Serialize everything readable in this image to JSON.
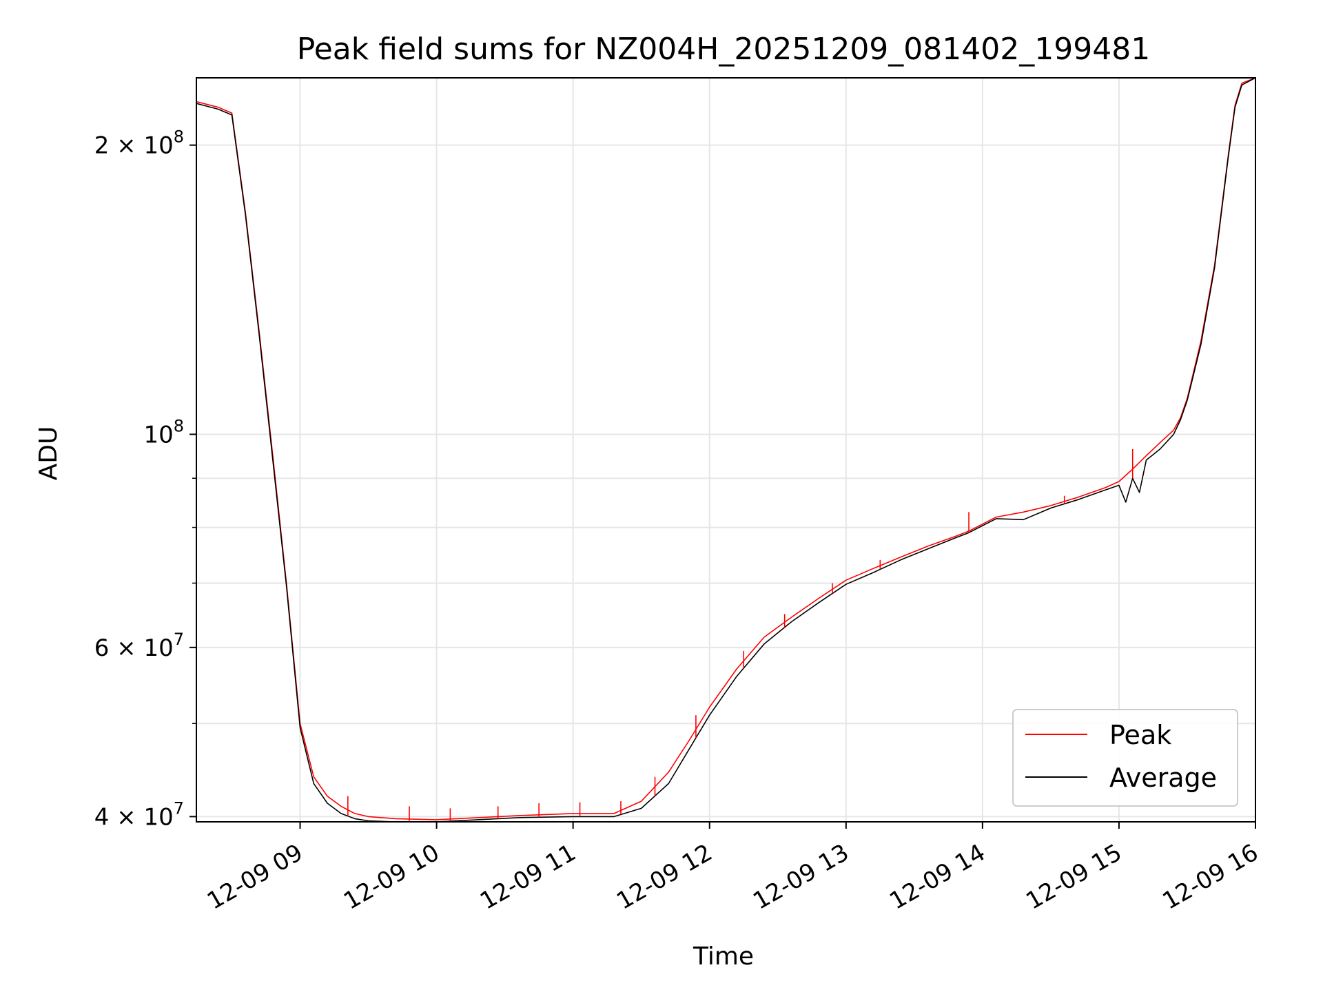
{
  "chart_data": {
    "type": "line",
    "title": "Peak field sums for NZ004H_20251209_081402_199481",
    "xlabel": "Time",
    "ylabel": "ADU",
    "yscale": "log",
    "ylim": [
      39500000,
      235000000
    ],
    "xlim": [
      8.24,
      16.0
    ],
    "grid": true,
    "legend_position": "lower-right",
    "x_ticks": [
      {
        "value": 9,
        "label": "12-09 09"
      },
      {
        "value": 10,
        "label": "12-09 10"
      },
      {
        "value": 11,
        "label": "12-09 11"
      },
      {
        "value": 12,
        "label": "12-09 12"
      },
      {
        "value": 13,
        "label": "12-09 13"
      },
      {
        "value": 14,
        "label": "12-09 14"
      },
      {
        "value": 15,
        "label": "12-09 15"
      },
      {
        "value": 16,
        "label": "12-09 16"
      }
    ],
    "y_ticks_major": [
      {
        "value": 40000000,
        "mantissa": "4",
        "exponent": "7"
      },
      {
        "value": 60000000,
        "mantissa": "6",
        "exponent": "7"
      },
      {
        "value": 100000000,
        "mantissa": "",
        "exponent": "8"
      },
      {
        "value": 200000000,
        "mantissa": "2",
        "exponent": "8"
      }
    ],
    "y_ticks_minor": [
      50000000,
      70000000,
      80000000,
      90000000
    ],
    "series": [
      {
        "name": "Peak",
        "color": "#ff0000",
        "x": [
          8.24,
          8.4,
          8.5,
          8.6,
          8.7,
          8.8,
          8.9,
          9.0,
          9.1,
          9.2,
          9.3,
          9.4,
          9.5,
          9.7,
          10.0,
          10.3,
          10.6,
          11.0,
          11.3,
          11.5,
          11.7,
          11.85,
          12.0,
          12.2,
          12.4,
          12.6,
          12.8,
          13.0,
          13.2,
          13.4,
          13.6,
          13.8,
          13.9,
          14.1,
          14.3,
          14.5,
          14.7,
          14.9,
          15.0,
          15.1,
          15.2,
          15.3,
          15.4,
          15.45,
          15.5,
          15.6,
          15.7,
          15.8,
          15.85,
          15.9,
          16.0
        ],
        "values": [
          222000000,
          219000000,
          216000000,
          170000000,
          128000000,
          95000000,
          70000000,
          50000000,
          44000000,
          42000000,
          41000000,
          40300000,
          40000000,
          39800000,
          39700000,
          39900000,
          40100000,
          40300000,
          40300000,
          41500000,
          44500000,
          48000000,
          52000000,
          57000000,
          61500000,
          64500000,
          67500000,
          70500000,
          72500000,
          74500000,
          76500000,
          78300000,
          79300000,
          82000000,
          83000000,
          84300000,
          86000000,
          88000000,
          89300000,
          92000000,
          95000000,
          98000000,
          101000000,
          104000000,
          109000000,
          125000000,
          150000000,
          195000000,
          220000000,
          232000000,
          235000000
        ],
        "spikes": [
          {
            "x": 9.35,
            "value": 42000000
          },
          {
            "x": 9.8,
            "value": 41000000
          },
          {
            "x": 10.1,
            "value": 40800000
          },
          {
            "x": 10.45,
            "value": 41000000
          },
          {
            "x": 10.75,
            "value": 41300000
          },
          {
            "x": 11.05,
            "value": 41400000
          },
          {
            "x": 11.35,
            "value": 41500000
          },
          {
            "x": 11.6,
            "value": 44000000
          },
          {
            "x": 11.9,
            "value": 51000000
          },
          {
            "x": 12.25,
            "value": 59500000
          },
          {
            "x": 12.55,
            "value": 65000000
          },
          {
            "x": 12.9,
            "value": 70000000
          },
          {
            "x": 13.25,
            "value": 74000000
          },
          {
            "x": 13.9,
            "value": 83000000
          },
          {
            "x": 14.6,
            "value": 86300000
          },
          {
            "x": 15.1,
            "value": 96500000
          }
        ]
      },
      {
        "name": "Average",
        "color": "#000000",
        "x": [
          8.24,
          8.4,
          8.5,
          8.6,
          8.7,
          8.8,
          8.9,
          9.0,
          9.1,
          9.2,
          9.3,
          9.4,
          9.5,
          9.7,
          10.0,
          10.3,
          10.6,
          11.0,
          11.3,
          11.5,
          11.7,
          11.85,
          12.0,
          12.2,
          12.4,
          12.6,
          12.8,
          13.0,
          13.2,
          13.4,
          13.6,
          13.8,
          13.9,
          14.1,
          14.3,
          14.5,
          14.7,
          14.9,
          15.0,
          15.05,
          15.1,
          15.15,
          15.2,
          15.3,
          15.4,
          15.45,
          15.5,
          15.6,
          15.7,
          15.8,
          15.85,
          15.9,
          16.0
        ],
        "values": [
          221000000,
          218000000,
          215000000,
          169000000,
          127000000,
          94000000,
          69500000,
          49500000,
          43300000,
          41300000,
          40300000,
          39800000,
          39600000,
          39500000,
          39500000,
          39700000,
          39900000,
          40000000,
          40000000,
          40800000,
          43300000,
          47000000,
          51000000,
          56000000,
          60500000,
          63800000,
          66800000,
          69800000,
          71800000,
          74000000,
          76000000,
          78000000,
          79000000,
          81700000,
          81500000,
          83800000,
          85500000,
          87500000,
          88500000,
          85000000,
          90000000,
          87000000,
          94000000,
          96500000,
          100000000,
          103500000,
          108500000,
          124000000,
          149000000,
          194000000,
          219000000,
          231000000,
          235000000
        ]
      }
    ]
  }
}
